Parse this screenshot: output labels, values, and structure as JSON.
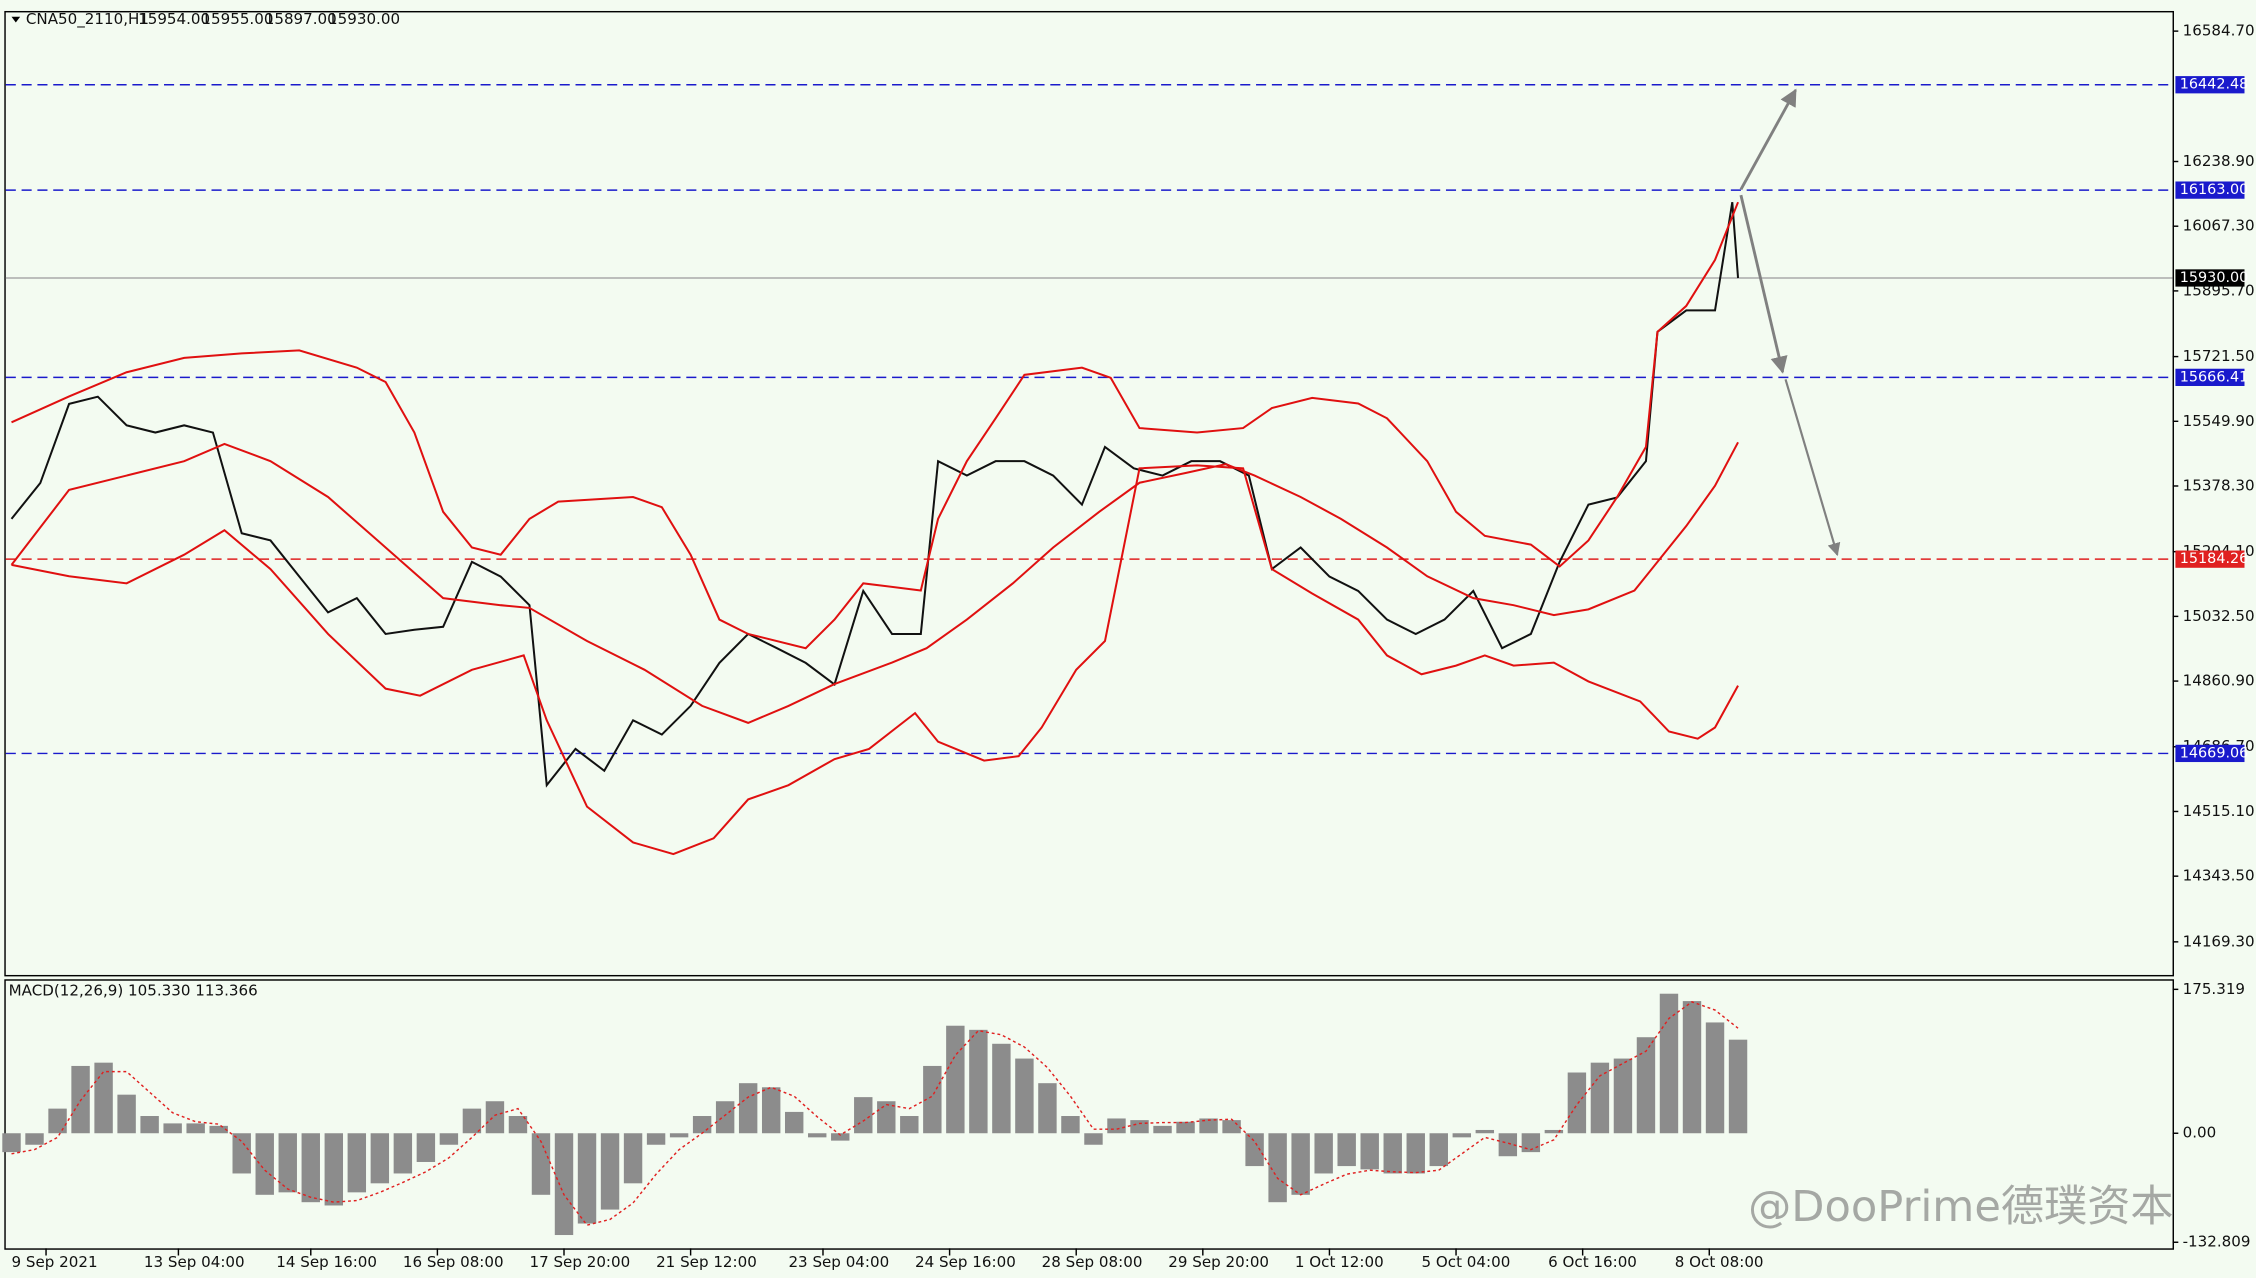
{
  "chart_data": [
    {
      "type": "line",
      "title": "CNA50_2110,H1",
      "ohlc_labels": [
        "15954.00",
        "15955.00",
        "15897.00",
        "15930.00"
      ],
      "xlim": [
        -1,
        375
      ],
      "xticks": [
        {
          "value": 6,
          "label": "9 Sep 2021"
        },
        {
          "value": 29,
          "label": "13 Sep 04:00"
        },
        {
          "value": 52,
          "label": "14 Sep 16:00"
        },
        {
          "value": 74,
          "label": "16 Sep 08:00"
        },
        {
          "value": 96,
          "label": "17 Sep 20:00"
        },
        {
          "value": 118,
          "label": "21 Sep 12:00"
        },
        {
          "value": 141,
          "label": "23 Sep 04:00"
        },
        {
          "value": 163,
          "label": "24 Sep 16:00"
        },
        {
          "value": 185,
          "label": "28 Sep 08:00"
        },
        {
          "value": 207,
          "label": "29 Sep 20:00"
        },
        {
          "value": 229,
          "label": "1 Oct 12:00"
        },
        {
          "value": 251,
          "label": "5 Oct 04:00"
        },
        {
          "value": 273,
          "label": "6 Oct 16:00"
        },
        {
          "value": 295,
          "label": "8 Oct 08:00"
        }
      ],
      "ylim": [
        14081.5,
        16634.3
      ],
      "yticks": [
        {
          "value": 16584.7,
          "label": "16584.70"
        },
        {
          "value": 16238.9,
          "label": "16238.90"
        },
        {
          "value": 16067.3,
          "label": "16067.30"
        },
        {
          "value": 15895.7,
          "label": "15895.70"
        },
        {
          "value": 15721.5,
          "label": "15721.50"
        },
        {
          "value": 15549.9,
          "label": "15549.90"
        },
        {
          "value": 15378.3,
          "label": "15378.30"
        },
        {
          "value": 15204.1,
          "label": "15204.10"
        },
        {
          "value": 15032.5,
          "label": "15032.50"
        },
        {
          "value": 14860.9,
          "label": "14860.90"
        },
        {
          "value": 14686.7,
          "label": "14686.70"
        },
        {
          "value": 14515.1,
          "label": "14515.10"
        },
        {
          "value": 14343.5,
          "label": "14343.50"
        },
        {
          "value": 14169.3,
          "label": "14169.30"
        }
      ],
      "levels": [
        {
          "value": 16442.48,
          "label": "16442.48",
          "color": "#1a1acc",
          "style": "dashed"
        },
        {
          "value": 16163,
          "label": "16163.00",
          "color": "#1a1acc",
          "style": "dashed"
        },
        {
          "value": 15930,
          "label": "15930.00",
          "color": "#000000",
          "style": "solid"
        },
        {
          "value": 15666.41,
          "label": "15666.41",
          "color": "#1a1acc",
          "style": "dashed"
        },
        {
          "value": 15184.26,
          "label": "15184.26",
          "color": "#e02020",
          "style": "dashed"
        },
        {
          "value": 14669.06,
          "label": "14669.06",
          "color": "#1a1acc",
          "style": "dashed"
        }
      ],
      "series": [
        {
          "color": "#111111",
          "x": [
            0,
            5,
            10,
            15,
            20,
            25,
            30,
            35,
            40,
            45,
            50,
            55,
            60,
            65,
            70,
            75,
            80,
            85,
            90,
            93,
            98,
            103,
            108,
            113,
            118,
            123,
            128,
            133,
            138,
            143,
            148,
            153,
            158,
            161,
            166,
            171,
            176,
            181,
            186,
            190,
            195,
            200,
            205,
            210,
            215,
            219,
            224,
            229,
            234,
            239,
            244,
            249,
            254,
            259,
            264,
            269,
            274,
            279,
            284,
            286,
            291,
            296,
            299,
            300
          ],
          "values": [
            15291,
            15386,
            15596,
            15615,
            15539,
            15520,
            15539,
            15520,
            15253,
            15234,
            15138,
            15043,
            15081,
            14986,
            14997,
            15005,
            15177,
            15138,
            15062,
            14585,
            14681,
            14623,
            14757,
            14719,
            14795,
            14909,
            14986,
            14948,
            14909,
            14852,
            15100,
            14986,
            14986,
            15444,
            15406,
            15444,
            15444,
            15406,
            15329,
            15482,
            15425,
            15406,
            15444,
            15444,
            15406,
            15158,
            15215,
            15138,
            15100,
            15024,
            14986,
            15024,
            15100,
            14948,
            14986,
            15177,
            15329,
            15348,
            15444,
            15787,
            15844,
            15844,
            16131,
            15930
          ]
        },
        {
          "color": "#e01010",
          "x": [
            0,
            10,
            20,
            30,
            40,
            50,
            60,
            65,
            70,
            75,
            80,
            85,
            90,
            95,
            108,
            113,
            118,
            123,
            128,
            138,
            143,
            148,
            158,
            161,
            166,
            171,
            176,
            186,
            191,
            196,
            206,
            214,
            219,
            226,
            234,
            239,
            246,
            251,
            256,
            264,
            269,
            274,
            279,
            284,
            286,
            291,
            296,
            300
          ],
          "values": [
            15547,
            15616,
            15680,
            15718,
            15730,
            15738,
            15692,
            15654,
            15520,
            15310,
            15215,
            15196,
            15291,
            15337,
            15349,
            15322,
            15196,
            15024,
            14986,
            14948,
            15024,
            15120,
            15101,
            15291,
            15444,
            15558,
            15673,
            15692,
            15665,
            15532,
            15520,
            15532,
            15585,
            15612,
            15597,
            15558,
            15444,
            15310,
            15246,
            15223,
            15165,
            15234,
            15349,
            15482,
            15787,
            15856,
            15978,
            16131
          ]
        },
        {
          "color": "#e01010",
          "x": [
            0,
            10,
            20,
            30,
            37,
            45,
            55,
            65,
            75,
            85,
            90,
            100,
            110,
            120,
            128,
            135,
            143,
            153,
            159,
            166,
            174,
            181,
            189,
            196,
            204,
            211,
            216,
            224,
            231,
            239,
            246,
            254,
            261,
            268,
            274,
            282,
            286,
            291,
            296,
            300
          ],
          "values": [
            15169,
            15368,
            15406,
            15444,
            15490,
            15444,
            15349,
            15215,
            15081,
            15062,
            15055,
            14967,
            14891,
            14795,
            14750,
            14795,
            14853,
            14910,
            14948,
            15024,
            15120,
            15215,
            15310,
            15387,
            15413,
            15436,
            15406,
            15349,
            15291,
            15215,
            15139,
            15081,
            15062,
            15036,
            15051,
            15101,
            15177,
            15272,
            15379,
            15494
          ]
        },
        {
          "color": "#e01010",
          "x": [
            0,
            10,
            20,
            30,
            37,
            45,
            55,
            65,
            71,
            80,
            89,
            93,
            100,
            108,
            115,
            122,
            128,
            135,
            143,
            149,
            157,
            161,
            169,
            175,
            179,
            185,
            190,
            196,
            206,
            214,
            219,
            226,
            234,
            239,
            245,
            251,
            256,
            261,
            268,
            274,
            283,
            288,
            293,
            296,
            300
          ],
          "values": [
            15169,
            15139,
            15120,
            15196,
            15261,
            15158,
            14986,
            14841,
            14822,
            14891,
            14929,
            14757,
            14528,
            14433,
            14402,
            14444,
            14547,
            14585,
            14654,
            14681,
            14776,
            14700,
            14650,
            14662,
            14738,
            14891,
            14967,
            15425,
            15433,
            15425,
            15158,
            15093,
            15024,
            14929,
            14879,
            14902,
            14929,
            14902,
            14910,
            14860,
            14807,
            14727,
            14708,
            14738,
            14849
          ]
        }
      ]
    },
    {
      "type": "bar",
      "title": "MACD(12,26,9) 105.330 113.366",
      "xlim": [
        -1,
        375
      ],
      "ylim": [
        -140.2,
        187.6
      ],
      "yticks": [
        175.319,
        {
          "value": 0,
          "label": "0.00"
        },
        -132.809
      ],
      "series": [
        {
          "type": "bar",
          "color": "#8c8c8c",
          "x": [
            0,
            4,
            8,
            12,
            16,
            20,
            24,
            28,
            32,
            36,
            40,
            44,
            48,
            52,
            56,
            60,
            64,
            68,
            72,
            76,
            80,
            84,
            88,
            92,
            96,
            100,
            104,
            108,
            112,
            116,
            120,
            124,
            128,
            132,
            136,
            140,
            144,
            148,
            152,
            156,
            160,
            164,
            168,
            172,
            176,
            180,
            184,
            188,
            192,
            196,
            200,
            204,
            208,
            212,
            216,
            220,
            224,
            228,
            232,
            236,
            240,
            244,
            248,
            252,
            256,
            260,
            264,
            268,
            272,
            276,
            280,
            284,
            288,
            292,
            296,
            300
          ],
          "values": [
            -23,
            -14,
            30,
            82,
            86,
            47,
            21,
            12,
            12,
            9,
            -49,
            -75,
            -72,
            -84,
            -88,
            -72,
            -61,
            -49,
            -35,
            -14,
            30,
            39,
            21,
            -75,
            -124,
            -110,
            -93,
            -61,
            -14,
            -5,
            21,
            39,
            61,
            56,
            26,
            -5,
            -9,
            44,
            39,
            21,
            82,
            131,
            126,
            109,
            91,
            61,
            21,
            -14,
            18,
            16,
            9,
            14,
            18,
            16,
            -40,
            -84,
            -75,
            -49,
            -40,
            -44,
            -49,
            -49,
            -40,
            -5,
            4,
            -28,
            -23,
            4,
            74,
            86,
            91,
            117,
            170,
            161,
            135,
            114
          ]
        },
        {
          "type": "line",
          "color": "#e02020",
          "x": [
            0,
            4,
            8,
            12,
            16,
            20,
            24,
            28,
            32,
            36,
            40,
            44,
            48,
            52,
            56,
            60,
            64,
            68,
            72,
            76,
            80,
            84,
            88,
            92,
            96,
            100,
            104,
            108,
            112,
            116,
            120,
            124,
            128,
            132,
            136,
            140,
            144,
            148,
            152,
            156,
            160,
            164,
            168,
            172,
            176,
            180,
            184,
            188,
            192,
            196,
            200,
            204,
            208,
            212,
            216,
            220,
            224,
            228,
            232,
            236,
            240,
            244,
            248,
            252,
            256,
            260,
            264,
            268,
            272,
            276,
            280,
            284,
            288,
            292,
            296,
            300
          ],
          "values": [
            -25,
            -20,
            -5,
            40,
            75,
            75,
            50,
            25,
            14,
            11,
            -10,
            -45,
            -68,
            -78,
            -84,
            -82,
            -72,
            -60,
            -47,
            -30,
            -5,
            22,
            30,
            -10,
            -75,
            -112,
            -105,
            -85,
            -50,
            -20,
            0,
            22,
            44,
            56,
            45,
            20,
            -2,
            15,
            35,
            30,
            45,
            95,
            125,
            120,
            105,
            80,
            45,
            5,
            5,
            12,
            13,
            13,
            16,
            17,
            -10,
            -55,
            -75,
            -62,
            -50,
            -45,
            -47,
            -48,
            -45,
            -25,
            -5,
            -12,
            -20,
            -8,
            35,
            70,
            85,
            100,
            140,
            160,
            150,
            128
          ]
        }
      ]
    }
  ],
  "watermark": "@DooPrime德璞资本"
}
